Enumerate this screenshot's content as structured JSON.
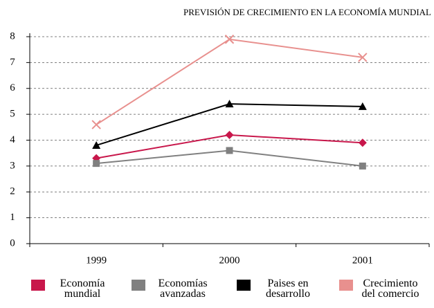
{
  "chart_data": {
    "type": "line",
    "title": "PREVISIÓN DE CRECIMIENTO EN LA ECONOMÍA MUNDIAL",
    "categories": [
      "1999",
      "2000",
      "2001"
    ],
    "series": [
      {
        "name": "Economía mundial",
        "color": "#c8174b",
        "marker": "diamond",
        "values": [
          3.3,
          4.2,
          3.9
        ]
      },
      {
        "name": "Economías avanzadas",
        "color": "#808080",
        "marker": "square",
        "values": [
          3.1,
          3.6,
          3.0
        ]
      },
      {
        "name": "Paises en desarrollo",
        "color": "#000000",
        "marker": "triangle",
        "values": [
          3.8,
          5.4,
          5.3
        ]
      },
      {
        "name": "Crecimiento del comercio",
        "color": "#e8908e",
        "marker": "x",
        "values": [
          4.6,
          7.9,
          7.2
        ]
      }
    ],
    "ylim": [
      0,
      8
    ],
    "yticks": [
      0,
      1,
      2,
      3,
      4,
      5,
      6,
      7,
      8
    ],
    "grid": true
  }
}
